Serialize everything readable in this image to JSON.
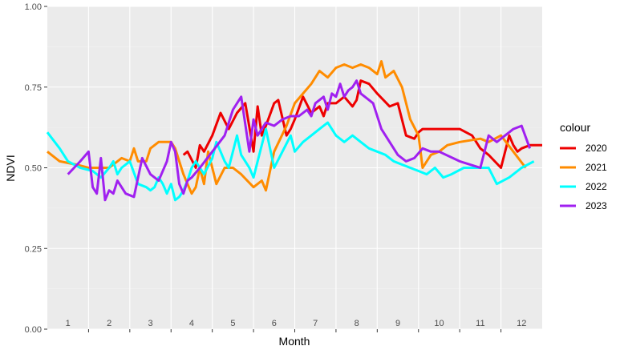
{
  "chart_data": {
    "type": "line",
    "xlabel": "Month",
    "ylabel": "NDVI",
    "ylim": [
      0,
      1
    ],
    "xlim": [
      0.5,
      12.5
    ],
    "x_ticks": [
      1.5,
      2.5,
      3.5,
      4.5,
      5.5,
      6.5,
      7.5,
      8.5,
      9.5,
      10.5,
      11.5
    ],
    "month_labels": [
      "1",
      "2",
      "3",
      "4",
      "5",
      "6",
      "7",
      "8",
      "9",
      "10",
      "11",
      "12"
    ],
    "y_ticks": [
      0,
      0.25,
      0.5,
      0.75,
      1
    ],
    "y_tick_labels": [
      "0.00",
      "0.25",
      "0.50",
      "0.75",
      "1.00"
    ],
    "grid": true,
    "background": "#ebebeb",
    "legend": {
      "title": "colour",
      "position": "right"
    },
    "series": [
      {
        "name": "2020",
        "color": "#ee0000",
        "x": [
          3.8,
          3.9,
          4.1,
          4.2,
          4.3,
          4.5,
          4.7,
          4.9,
          5.1,
          5.3,
          5.5,
          5.6,
          5.7,
          5.8,
          6.0,
          6.1,
          6.3,
          6.4,
          6.5,
          6.7,
          6.9,
          7.1,
          7.2,
          7.3,
          7.5,
          7.7,
          7.9,
          8.0,
          8.1,
          8.3,
          8.5,
          8.8,
          9.0,
          9.2,
          9.4,
          9.5,
          9.6,
          9.7,
          10.1,
          10.5,
          10.8,
          11.0,
          11.2,
          11.5,
          11.7,
          11.8,
          11.9,
          12.0,
          12.2,
          12.5
        ],
        "y": [
          0.54,
          0.55,
          0.5,
          0.57,
          0.55,
          0.6,
          0.67,
          0.62,
          0.67,
          0.7,
          0.55,
          0.69,
          0.6,
          0.63,
          0.7,
          0.71,
          0.6,
          0.62,
          0.65,
          0.72,
          0.67,
          0.69,
          0.66,
          0.7,
          0.7,
          0.72,
          0.69,
          0.71,
          0.77,
          0.76,
          0.73,
          0.69,
          0.7,
          0.6,
          0.59,
          0.61,
          0.62,
          0.62,
          0.62,
          0.62,
          0.6,
          0.56,
          0.54,
          0.5,
          0.6,
          0.57,
          0.55,
          0.56,
          0.57,
          0.57
        ]
      },
      {
        "name": "2021",
        "color": "#ff8c00",
        "x": [
          0.5,
          0.8,
          1.2,
          1.5,
          2.0,
          2.3,
          2.5,
          2.6,
          2.7,
          2.9,
          3.0,
          3.2,
          3.5,
          3.6,
          3.8,
          3.9,
          4.0,
          4.1,
          4.2,
          4.3,
          4.4,
          4.6,
          4.8,
          5.0,
          5.2,
          5.5,
          5.7,
          5.8,
          6.0,
          6.3,
          6.5,
          6.9,
          7.1,
          7.3,
          7.5,
          7.7,
          7.9,
          8.1,
          8.3,
          8.5,
          8.6,
          8.7,
          8.9,
          9.1,
          9.3,
          9.5,
          9.6,
          9.8,
          10.0,
          10.2,
          10.5,
          11.0,
          11.2,
          11.5,
          11.8,
          12.1
        ],
        "y": [
          0.55,
          0.52,
          0.51,
          0.5,
          0.5,
          0.53,
          0.52,
          0.56,
          0.52,
          0.52,
          0.56,
          0.58,
          0.58,
          0.56,
          0.48,
          0.45,
          0.42,
          0.44,
          0.5,
          0.45,
          0.55,
          0.45,
          0.5,
          0.5,
          0.48,
          0.44,
          0.46,
          0.43,
          0.55,
          0.63,
          0.7,
          0.76,
          0.8,
          0.78,
          0.81,
          0.82,
          0.81,
          0.82,
          0.81,
          0.79,
          0.83,
          0.78,
          0.8,
          0.75,
          0.65,
          0.6,
          0.5,
          0.54,
          0.55,
          0.57,
          0.58,
          0.59,
          0.58,
          0.6,
          0.55,
          0.5
        ]
      },
      {
        "name": "2022",
        "color": "#00ffff",
        "x": [
          0.5,
          0.8,
          1.0,
          1.3,
          1.6,
          1.8,
          2.0,
          2.1,
          2.2,
          2.3,
          2.5,
          2.7,
          2.9,
          3.0,
          3.1,
          3.2,
          3.3,
          3.4,
          3.5,
          3.6,
          3.7,
          3.8,
          3.9,
          4.0,
          4.1,
          4.2,
          4.3,
          4.5,
          4.6,
          4.7,
          4.8,
          4.9,
          5.0,
          5.1,
          5.2,
          5.3,
          5.4,
          5.5,
          5.6,
          5.8,
          6.0,
          6.2,
          6.4,
          6.5,
          6.7,
          6.9,
          7.1,
          7.3,
          7.5,
          7.7,
          7.9,
          8.1,
          8.3,
          8.5,
          8.7,
          8.9,
          9.1,
          9.3,
          9.5,
          9.7,
          9.9,
          10.1,
          10.3,
          10.6,
          10.9,
          11.2,
          11.4,
          11.7,
          12.0,
          12.3
        ],
        "y": [
          0.61,
          0.56,
          0.52,
          0.5,
          0.49,
          0.47,
          0.5,
          0.52,
          0.48,
          0.5,
          0.52,
          0.45,
          0.44,
          0.43,
          0.44,
          0.47,
          0.45,
          0.42,
          0.45,
          0.4,
          0.41,
          0.43,
          0.46,
          0.5,
          0.52,
          0.5,
          0.48,
          0.53,
          0.58,
          0.55,
          0.52,
          0.5,
          0.55,
          0.6,
          0.54,
          0.52,
          0.5,
          0.47,
          0.52,
          0.62,
          0.5,
          0.55,
          0.6,
          0.55,
          0.58,
          0.6,
          0.62,
          0.64,
          0.6,
          0.58,
          0.6,
          0.58,
          0.56,
          0.55,
          0.54,
          0.52,
          0.51,
          0.5,
          0.49,
          0.48,
          0.5,
          0.47,
          0.48,
          0.5,
          0.5,
          0.5,
          0.45,
          0.47,
          0.5,
          0.52
        ]
      },
      {
        "name": "2023",
        "color": "#a020f0",
        "x": [
          1.0,
          1.3,
          1.5,
          1.6,
          1.7,
          1.8,
          1.9,
          2.0,
          2.1,
          2.2,
          2.4,
          2.6,
          2.8,
          3.0,
          3.2,
          3.4,
          3.5,
          3.6,
          3.7,
          3.8,
          3.9,
          4.0,
          4.2,
          4.5,
          4.8,
          5.0,
          5.2,
          5.4,
          5.5,
          5.6,
          5.8,
          6.0,
          6.2,
          6.4,
          6.6,
          6.8,
          6.9,
          7.0,
          7.1,
          7.2,
          7.3,
          7.4,
          7.5,
          7.6,
          7.7,
          7.8,
          7.9,
          8.0,
          8.1,
          8.2,
          8.4,
          8.6,
          8.8,
          9.0,
          9.2,
          9.4,
          9.6,
          9.8,
          10.0,
          10.5,
          11.0,
          11.2,
          11.4,
          11.6,
          11.8,
          12.0,
          12.2
        ],
        "y": [
          0.48,
          0.52,
          0.55,
          0.44,
          0.42,
          0.53,
          0.4,
          0.43,
          0.42,
          0.46,
          0.42,
          0.41,
          0.53,
          0.48,
          0.46,
          0.52,
          0.58,
          0.55,
          0.45,
          0.42,
          0.46,
          0.47,
          0.5,
          0.55,
          0.6,
          0.68,
          0.72,
          0.55,
          0.65,
          0.6,
          0.64,
          0.63,
          0.65,
          0.66,
          0.66,
          0.68,
          0.66,
          0.7,
          0.71,
          0.72,
          0.68,
          0.73,
          0.72,
          0.76,
          0.72,
          0.74,
          0.75,
          0.77,
          0.73,
          0.72,
          0.7,
          0.62,
          0.58,
          0.54,
          0.52,
          0.53,
          0.56,
          0.55,
          0.55,
          0.52,
          0.5,
          0.6,
          0.58,
          0.6,
          0.62,
          0.63,
          0.56
        ]
      }
    ]
  }
}
